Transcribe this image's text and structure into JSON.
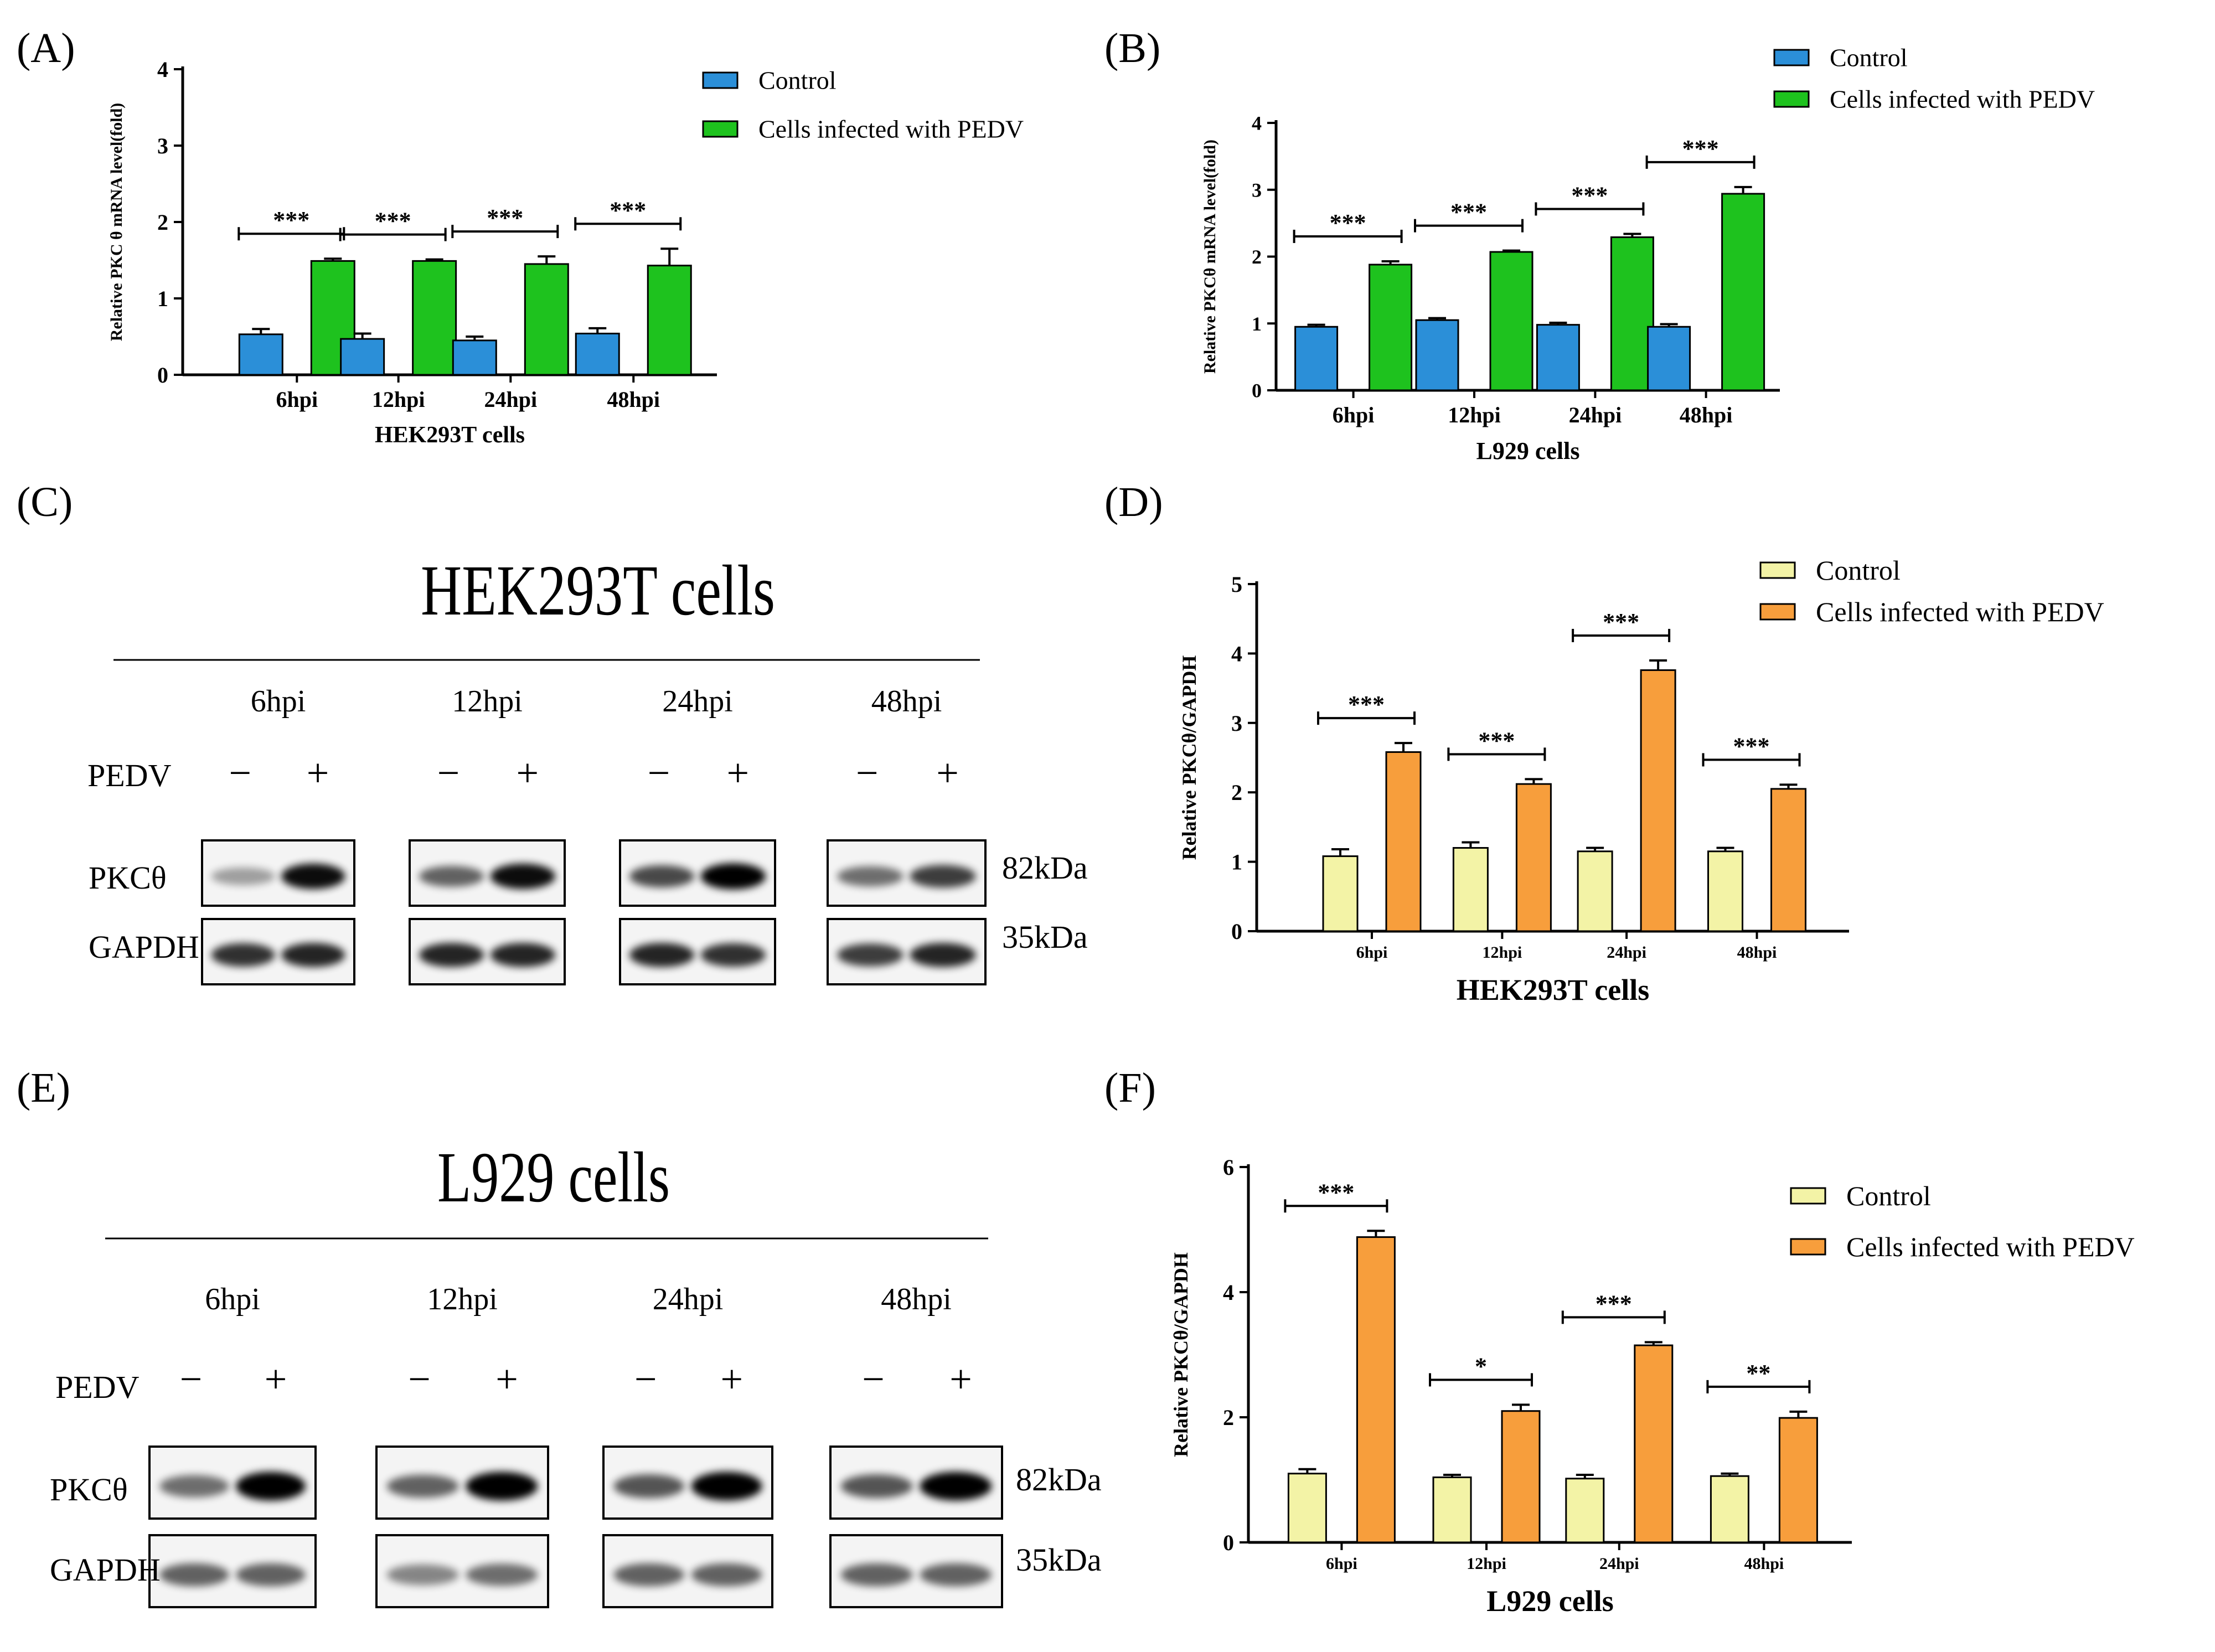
{
  "panel_labels": [
    "(A)",
    "(B)",
    "(C)",
    "(D)",
    "(E)",
    "(F)"
  ],
  "colors": {
    "control_blue": "#2b8fd8",
    "pedv_green": "#1ec21e",
    "control_yellow": "#f3f3a6",
    "pedv_orange": "#f79e3c",
    "axis": "#000000"
  },
  "chart_data": [
    {
      "id": "A",
      "type": "bar",
      "title": "",
      "xlabel": "HEK293T cells",
      "ylabel": "Relative PKC θ mRNA level(fold)",
      "categories": [
        "6hpi",
        "12hpi",
        "24hpi",
        "48hpi"
      ],
      "ylim": [
        0,
        4
      ],
      "yticks": [
        "0",
        "1",
        "2",
        "3",
        "4"
      ],
      "legend_position": "top-right",
      "series": [
        {
          "name": "Control",
          "color": "#2b8fd8",
          "values": [
            0.53,
            0.47,
            0.45,
            0.54
          ],
          "errors": [
            0.07,
            0.07,
            0.05,
            0.07
          ]
        },
        {
          "name": "Cells infected with PEDV",
          "color": "#1ec21e",
          "values": [
            1.49,
            1.49,
            1.45,
            1.43
          ],
          "errors": [
            0.03,
            0.02,
            0.1,
            0.22
          ]
        }
      ],
      "significance": [
        "***",
        "***",
        "***",
        "***"
      ]
    },
    {
      "id": "B",
      "type": "bar",
      "title": "",
      "xlabel": "L929 cells",
      "ylabel": "Relative PKCθ mRNA level(fold)",
      "categories": [
        "6hpi",
        "12hpi",
        "24hpi",
        "48hpi"
      ],
      "ylim": [
        0,
        4
      ],
      "yticks": [
        "0",
        "1",
        "2",
        "3",
        "4"
      ],
      "legend_position": "top-right",
      "series": [
        {
          "name": "Control",
          "color": "#2b8fd8",
          "values": [
            0.95,
            1.05,
            0.98,
            0.95
          ],
          "errors": [
            0.03,
            0.03,
            0.03,
            0.04
          ]
        },
        {
          "name": "Cells infected with PEDV",
          "color": "#1ec21e",
          "values": [
            1.88,
            2.07,
            2.29,
            2.94
          ],
          "errors": [
            0.05,
            0.02,
            0.05,
            0.1
          ]
        }
      ],
      "significance": [
        "***",
        "***",
        "***",
        "***"
      ]
    },
    {
      "id": "D",
      "type": "bar",
      "title": "",
      "xlabel": "HEK293T cells",
      "ylabel": "Relative PKCθ/GAPDH",
      "categories": [
        "6hpi",
        "12hpi",
        "24hpi",
        "48hpi"
      ],
      "ylim": [
        0,
        5
      ],
      "yticks": [
        "0",
        "1",
        "2",
        "3",
        "4",
        "5"
      ],
      "legend_position": "top-right",
      "series": [
        {
          "name": "Control",
          "color": "#f3f3a6",
          "values": [
            1.08,
            1.2,
            1.15,
            1.15
          ],
          "errors": [
            0.1,
            0.08,
            0.05,
            0.05
          ]
        },
        {
          "name": "Cells infected with PEDV",
          "color": "#f79e3c",
          "values": [
            2.58,
            2.12,
            3.76,
            2.05
          ],
          "errors": [
            0.13,
            0.07,
            0.14,
            0.06
          ]
        }
      ],
      "significance": [
        "***",
        "***",
        "***",
        "***"
      ]
    },
    {
      "id": "F",
      "type": "bar",
      "title": "",
      "xlabel": "L929 cells",
      "ylabel": "Relative PKCθ/GAPDH",
      "categories": [
        "6hpi",
        "12hpi",
        "24hpi",
        "48hpi"
      ],
      "ylim": [
        0,
        6
      ],
      "yticks": [
        "0",
        "2",
        "4",
        "6"
      ],
      "legend_position": "top-right",
      "series": [
        {
          "name": "Control",
          "color": "#f3f3a6",
          "values": [
            1.1,
            1.04,
            1.02,
            1.06
          ],
          "errors": [
            0.07,
            0.04,
            0.06,
            0.04
          ]
        },
        {
          "name": "Cells infected with PEDV",
          "color": "#f79e3c",
          "values": [
            4.88,
            2.1,
            3.15,
            1.99
          ],
          "errors": [
            0.1,
            0.1,
            0.05,
            0.1
          ]
        }
      ],
      "significance": [
        "***",
        "*",
        "***",
        "**"
      ]
    }
  ],
  "blots": [
    {
      "id": "C",
      "title": "HEK293T cells",
      "timepoints": [
        "6hpi",
        "12hpi",
        "24hpi",
        "48hpi"
      ],
      "treatment_label": "PEDV",
      "signs": [
        "−",
        "+"
      ],
      "rows": [
        {
          "label": "PKCθ",
          "kda": "82kDa"
        },
        {
          "label": "GAPDH",
          "kda": "35kDa"
        }
      ]
    },
    {
      "id": "E",
      "title": "L929 cells",
      "timepoints": [
        "6hpi",
        "12hpi",
        "24hpi",
        "48hpi"
      ],
      "treatment_label": "PEDV",
      "signs": [
        "−",
        "+"
      ],
      "rows": [
        {
          "label": "PKCθ",
          "kda": "82kDa"
        },
        {
          "label": "GAPDH",
          "kda": "35kDa"
        }
      ]
    }
  ]
}
